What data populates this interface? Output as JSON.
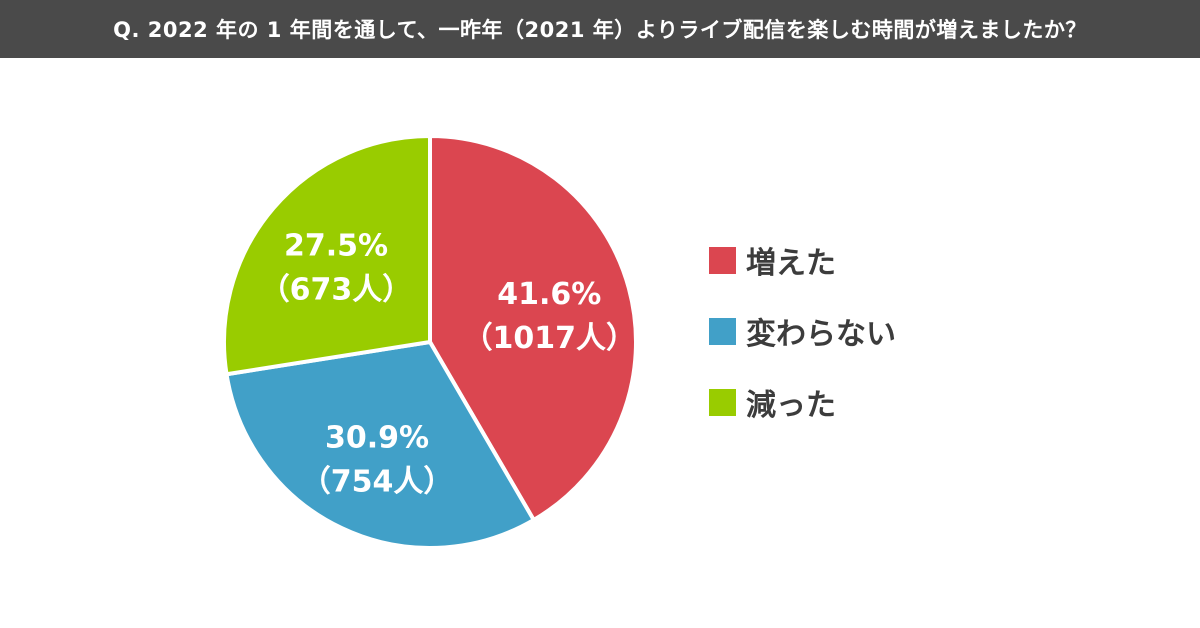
{
  "header": {
    "question": "Q. 2022 年の 1 年間を通して、一昨年（2021 年）よりライブ配信を楽しむ時間が増えましたか？"
  },
  "chart_data": {
    "type": "pie",
    "title": "Q. 2022 年の 1 年間を通して、一昨年（2021 年）よりライブ配信を楽しむ時間が増えましたか？",
    "slices": [
      {
        "name": "増えた",
        "percent": 41.6,
        "count": 1017,
        "percent_label": "41.6%",
        "count_label": "（1017人）",
        "color": "#db4650"
      },
      {
        "name": "変わらない",
        "percent": 30.9,
        "count": 754,
        "percent_label": "30.9%",
        "count_label": "（754人）",
        "color": "#41a0c8"
      },
      {
        "name": "減った",
        "percent": 27.5,
        "count": 673,
        "percent_label": "27.5%",
        "count_label": "（673人）",
        "color": "#99cc00"
      }
    ],
    "start_angle": "12 o'clock",
    "direction": "clockwise",
    "legend_placement": "right"
  },
  "legend": {
    "items": [
      {
        "label": "増えた",
        "color": "#db4650"
      },
      {
        "label": "変わらない",
        "color": "#41a0c8"
      },
      {
        "label": "減った",
        "color": "#99cc00"
      }
    ]
  }
}
